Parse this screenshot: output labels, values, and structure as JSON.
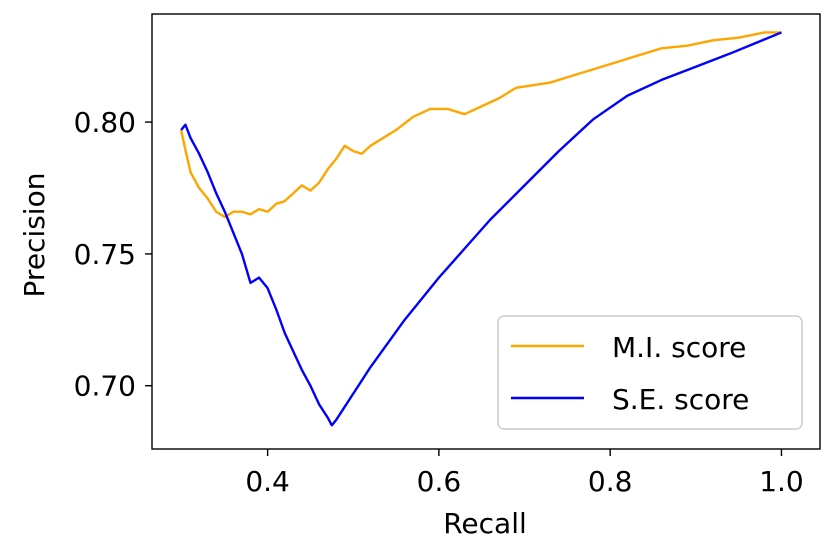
{
  "chart_data": {
    "type": "line",
    "title": "",
    "xlabel": "Recall",
    "ylabel": "Precision",
    "xlim": [
      0.265,
      1.045
    ],
    "ylim": [
      0.676,
      0.841
    ],
    "xticks": [
      0.4,
      0.6,
      0.8,
      1.0
    ],
    "xtick_labels": [
      "0.4",
      "0.6",
      "0.8",
      "1.0"
    ],
    "yticks": [
      0.7,
      0.75,
      0.8
    ],
    "ytick_labels": [
      "0.70",
      "0.75",
      "0.80"
    ],
    "grid": false,
    "legend_position": "lower-right",
    "series": [
      {
        "name": "M.I. score",
        "color": "#FFA500",
        "x": [
          0.299,
          0.305,
          0.31,
          0.32,
          0.33,
          0.34,
          0.35,
          0.36,
          0.37,
          0.38,
          0.39,
          0.4,
          0.41,
          0.42,
          0.43,
          0.44,
          0.45,
          0.46,
          0.47,
          0.48,
          0.49,
          0.5,
          0.51,
          0.52,
          0.53,
          0.55,
          0.57,
          0.59,
          0.61,
          0.63,
          0.65,
          0.67,
          0.69,
          0.71,
          0.73,
          0.75,
          0.77,
          0.8,
          0.83,
          0.86,
          0.89,
          0.92,
          0.95,
          0.98,
          1.0
        ],
        "y": [
          0.797,
          0.788,
          0.781,
          0.775,
          0.771,
          0.766,
          0.764,
          0.766,
          0.766,
          0.765,
          0.767,
          0.766,
          0.769,
          0.77,
          0.773,
          0.776,
          0.774,
          0.777,
          0.782,
          0.786,
          0.791,
          0.789,
          0.788,
          0.791,
          0.793,
          0.797,
          0.802,
          0.805,
          0.805,
          0.803,
          0.806,
          0.809,
          0.813,
          0.814,
          0.815,
          0.817,
          0.819,
          0.822,
          0.825,
          0.828,
          0.829,
          0.831,
          0.832,
          0.834,
          0.834
        ]
      },
      {
        "name": "S.E. score",
        "color": "#0000FF",
        "x": [
          0.299,
          0.304,
          0.31,
          0.32,
          0.33,
          0.34,
          0.35,
          0.36,
          0.37,
          0.38,
          0.39,
          0.4,
          0.41,
          0.42,
          0.43,
          0.44,
          0.45,
          0.46,
          0.47,
          0.475,
          0.48,
          0.49,
          0.5,
          0.52,
          0.54,
          0.56,
          0.58,
          0.6,
          0.63,
          0.66,
          0.7,
          0.74,
          0.78,
          0.82,
          0.86,
          0.9,
          0.94,
          0.97,
          1.0
        ],
        "y": [
          0.797,
          0.799,
          0.794,
          0.788,
          0.781,
          0.773,
          0.766,
          0.758,
          0.75,
          0.739,
          0.741,
          0.737,
          0.729,
          0.72,
          0.713,
          0.706,
          0.7,
          0.693,
          0.688,
          0.685,
          0.687,
          0.692,
          0.697,
          0.707,
          0.716,
          0.725,
          0.733,
          0.741,
          0.752,
          0.763,
          0.776,
          0.789,
          0.801,
          0.81,
          0.816,
          0.821,
          0.826,
          0.83,
          0.834
        ]
      }
    ]
  }
}
